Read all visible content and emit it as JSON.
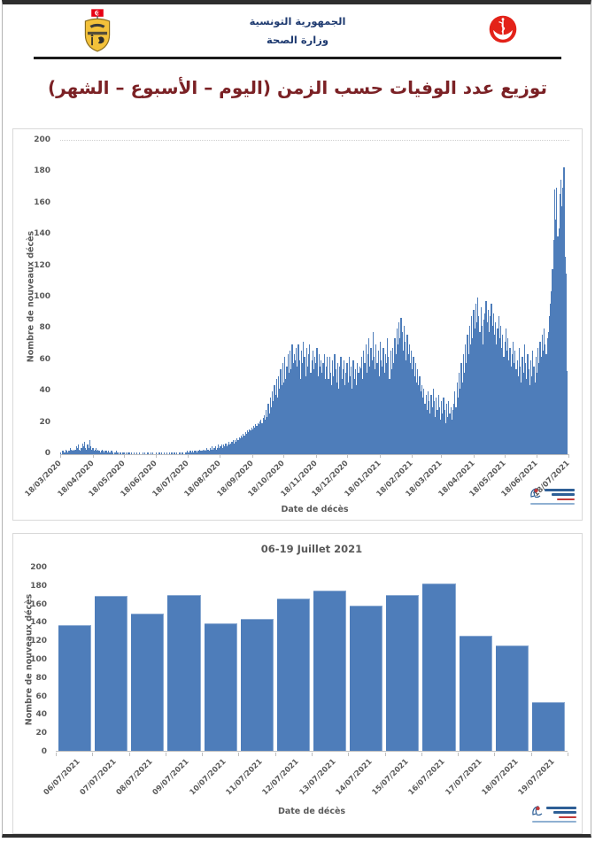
{
  "header": {
    "republic_title": "الجمهورية التونسية",
    "ministry_title": "وزارة الصحة"
  },
  "page_title": "توزيع عدد الوفيات حسب الزمن (اليوم – الأسبوع – الشهر)",
  "colors": {
    "bar_blue": "#4e7dba",
    "title_maroon": "#7b2125",
    "header_navy": "#1e3a70",
    "axis_gray": "#595959",
    "ministry_logo_red": "#e32219",
    "flag_red": "#e70013",
    "coat_gold": "#f3c13a"
  },
  "chart_data": [
    {
      "type": "bar",
      "title": "",
      "xlabel": "Date de décès",
      "ylabel": "Nombre de nouveaux décès",
      "ylim": [
        0,
        200
      ],
      "yticks": [
        0,
        20,
        40,
        60,
        80,
        100,
        120,
        140,
        160,
        180,
        200
      ],
      "grid": "top dotted line at 200 only",
      "legend": "none",
      "x_start": "18/03/2020",
      "x_end": "19/07/2021",
      "x_tick_labels": [
        "18/03/2020",
        "18/04/2020",
        "18/05/2020",
        "18/06/2020",
        "18/07/2020",
        "18/08/2020",
        "18/09/2020",
        "18/10/2020",
        "18/11/2020",
        "18/12/2020",
        "18/01/2021",
        "18/02/2021",
        "18/03/2021",
        "18/04/2021",
        "18/05/2021",
        "18/06/2021",
        "18/07/2021"
      ],
      "x_tick_day_index": [
        0,
        31,
        61,
        92,
        122,
        153,
        184,
        214,
        245,
        275,
        306,
        337,
        365,
        396,
        426,
        457,
        487
      ],
      "values": [
        1,
        0,
        2,
        1,
        1,
        3,
        2,
        1,
        2,
        4,
        3,
        2,
        3,
        2,
        3,
        5,
        4,
        6,
        3,
        2,
        4,
        7,
        5,
        8,
        4,
        3,
        6,
        4,
        9,
        5,
        3,
        4,
        2,
        3,
        4,
        2,
        3,
        2,
        1,
        2,
        3,
        2,
        1,
        2,
        2,
        1,
        2,
        1,
        1,
        2,
        1,
        0,
        1,
        1,
        2,
        1,
        0,
        1,
        1,
        0,
        1,
        1,
        0,
        1,
        0,
        1,
        1,
        0,
        1,
        0,
        0,
        1,
        0,
        1,
        0,
        0,
        1,
        0,
        0,
        1,
        0,
        1,
        0,
        0,
        1,
        0,
        0,
        1,
        0,
        1,
        0,
        0,
        1,
        0,
        0,
        1,
        0,
        1,
        0,
        0,
        1,
        0,
        1,
        0,
        0,
        1,
        0,
        1,
        0,
        1,
        1,
        0,
        1,
        0,
        1,
        1,
        0,
        1,
        1,
        0,
        1,
        1,
        2,
        1,
        1,
        2,
        1,
        2,
        1,
        2,
        2,
        1,
        2,
        2,
        3,
        2,
        2,
        3,
        2,
        3,
        2,
        4,
        3,
        2,
        4,
        3,
        5,
        3,
        4,
        5,
        3,
        4,
        6,
        4,
        5,
        6,
        4,
        6,
        5,
        7,
        5,
        6,
        8,
        6,
        7,
        8,
        9,
        7,
        9,
        8,
        10,
        9,
        11,
        10,
        12,
        11,
        13,
        12,
        14,
        13,
        15,
        14,
        16,
        15,
        17,
        16,
        18,
        17,
        19,
        18,
        20,
        19,
        21,
        22,
        20,
        23,
        25,
        22,
        28,
        24,
        32,
        26,
        36,
        30,
        40,
        34,
        44,
        38,
        48,
        36,
        50,
        42,
        54,
        44,
        58,
        46,
        62,
        48,
        56,
        64,
        52,
        66,
        54,
        70,
        58,
        64,
        60,
        68,
        56,
        70,
        60,
        48,
        66,
        58,
        72,
        62,
        50,
        68,
        56,
        64,
        70,
        52,
        60,
        66,
        54,
        62,
        58,
        68,
        50,
        64,
        56,
        60,
        52,
        58,
        64,
        48,
        56,
        62,
        48,
        62,
        52,
        44,
        60,
        50,
        64,
        54,
        46,
        58,
        42,
        56,
        62,
        48,
        54,
        60,
        44,
        52,
        58,
        46,
        62,
        50,
        56,
        42,
        60,
        48,
        54,
        44,
        58,
        52,
        56,
        55,
        62,
        48,
        66,
        58,
        70,
        52,
        64,
        74,
        56,
        68,
        60,
        78,
        62,
        54,
        70,
        58,
        66,
        50,
        72,
        60,
        56,
        68,
        52,
        64,
        58,
        74,
        62,
        48,
        66,
        54,
        68,
        58,
        74,
        64,
        80,
        70,
        84,
        74,
        87,
        78,
        66,
        82,
        72,
        60,
        76,
        64,
        70,
        58,
        66,
        54,
        62,
        50,
        58,
        46,
        54,
        44,
        50,
        40,
        44,
        36,
        42,
        32,
        38,
        28,
        40,
        34,
        26,
        38,
        30,
        42,
        34,
        24,
        36,
        28,
        38,
        30,
        22,
        34,
        26,
        36,
        28,
        20,
        32,
        24,
        34,
        26,
        30,
        22,
        28,
        32,
        40,
        30,
        46,
        36,
        52,
        42,
        58,
        46,
        64,
        52,
        70,
        58,
        76,
        64,
        82,
        70,
        88,
        74,
        92,
        80,
        96,
        84,
        100,
        88,
        78,
        94,
        82,
        70,
        86,
        90,
        98,
        84,
        92,
        78,
        88,
        96,
        82,
        90,
        76,
        84,
        70,
        80,
        88,
        74,
        82,
        68,
        76,
        62,
        72,
        80,
        66,
        74,
        60,
        68,
        56,
        64,
        72,
        58,
        66,
        54,
        60,
        50,
        68,
        56,
        46,
        62,
        52,
        70,
        58,
        48,
        64,
        54,
        44,
        60,
        50,
        66,
        56,
        46,
        62,
        52,
        68,
        58,
        72,
        62,
        76,
        66,
        80,
        70,
        64,
        74,
        78,
        88,
        96,
        104,
        118,
        137,
        169,
        150,
        170,
        139,
        144,
        166,
        175,
        158,
        170,
        183,
        126,
        115,
        53
      ]
    },
    {
      "type": "bar",
      "title": "06-19 Juillet 2021",
      "xlabel": "Date de décès",
      "ylabel": "Nombre de nouveaux décès",
      "ylim": [
        0,
        200
      ],
      "yticks": [
        0,
        20,
        40,
        60,
        80,
        100,
        120,
        140,
        160,
        180,
        200
      ],
      "grid": "off",
      "legend": "none",
      "categories": [
        "06/07/2021",
        "07/07/2021",
        "08/07/2021",
        "09/07/2021",
        "10/07/2021",
        "11/07/2021",
        "12/07/2021",
        "13/07/2021",
        "14/07/2021",
        "15/07/2021",
        "16/07/2021",
        "17/07/2021",
        "18/07/2021",
        "19/07/2021"
      ],
      "values": [
        137,
        169,
        150,
        170,
        139,
        144,
        166,
        175,
        158,
        170,
        183,
        126,
        115,
        53
      ]
    }
  ]
}
